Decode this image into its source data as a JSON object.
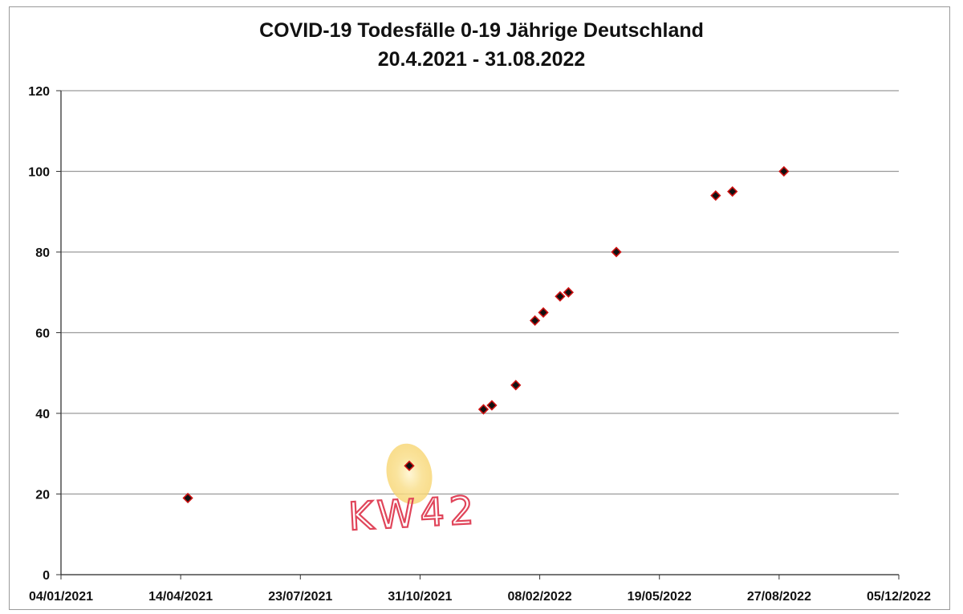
{
  "chart_data": {
    "type": "scatter",
    "title": "COVID-19 Todesfälle 0-19 Jährige Deutschland",
    "subtitle": "20.4.2021 - 31.08.2022",
    "xlabel": "",
    "ylabel": "",
    "xlim": [
      "2021-01-04",
      "2022-12-05"
    ],
    "ylim": [
      0,
      120
    ],
    "x_ticks": [
      "04/01/2021",
      "14/04/2021",
      "23/07/2021",
      "31/10/2021",
      "08/02/2022",
      "19/05/2022",
      "27/08/2022",
      "05/12/2022"
    ],
    "y_ticks": [
      "0",
      "20",
      "40",
      "60",
      "80",
      "100",
      "120"
    ],
    "grid": "horizontal",
    "legend": "none",
    "marker": "diamond",
    "colors": {
      "marker_fill": "#111111",
      "marker_edge": "#cc1111",
      "grid": "#9a9a9a",
      "annotation": "#e0455a",
      "highlight": "#f7d36a"
    },
    "points": [
      {
        "x": "2021-04-20",
        "y": 19
      },
      {
        "x": "2021-10-22",
        "y": 27
      },
      {
        "x": "2021-12-23",
        "y": 41
      },
      {
        "x": "2021-12-30",
        "y": 42
      },
      {
        "x": "2022-01-19",
        "y": 47
      },
      {
        "x": "2022-02-04",
        "y": 63
      },
      {
        "x": "2022-02-11",
        "y": 65
      },
      {
        "x": "2022-02-25",
        "y": 69
      },
      {
        "x": "2022-03-04",
        "y": 70
      },
      {
        "x": "2022-04-13",
        "y": 80
      },
      {
        "x": "2022-07-05",
        "y": 94
      },
      {
        "x": "2022-07-19",
        "y": 95
      },
      {
        "x": "2022-08-31",
        "y": 100
      }
    ],
    "annotations": [
      {
        "text": "KW42",
        "x": "2021-10-22",
        "y": 27,
        "style": "handwritten",
        "highlight": true
      }
    ]
  }
}
